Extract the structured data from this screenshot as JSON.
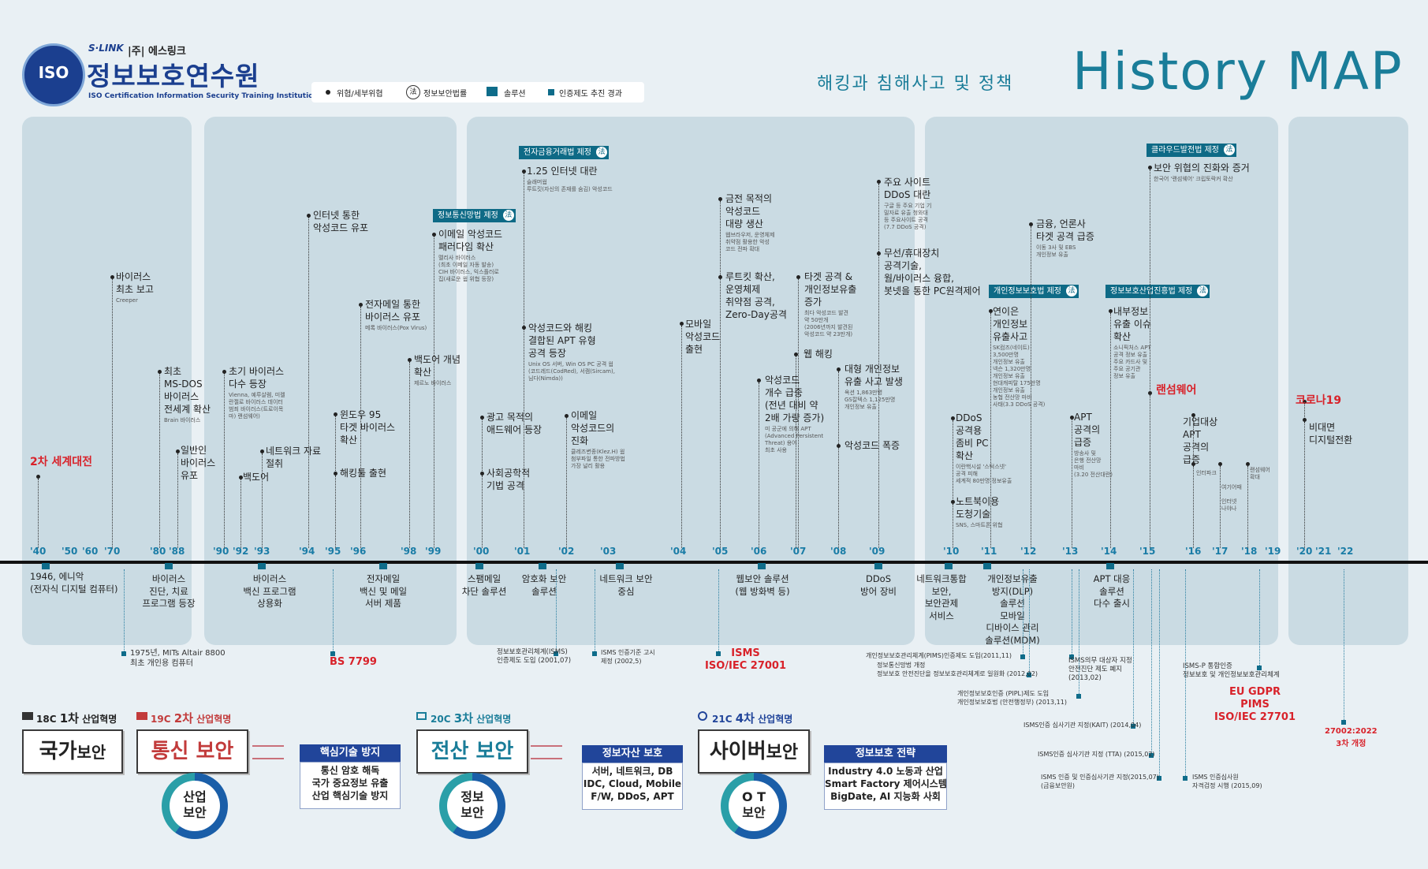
{
  "header": {
    "brand_small": "S·LINK",
    "company": "|주| 에스링크",
    "org_name": "정보보호연수원",
    "org_sub": "ISO Certification Information Security Training Institution",
    "logo_text": "ISO",
    "subtitle": "해킹과 침해사고 및 정책",
    "title": "History MAP"
  },
  "legend": {
    "threat": "위협/세부위협",
    "law": "정보보안법률",
    "law_icon": "法",
    "solution": "솔루션",
    "cert": "인증제도 추진 경과"
  },
  "years": [
    "'40",
    "'50",
    "'60",
    "'70",
    "'80",
    "'88",
    "'90",
    "'92",
    "'93",
    "'94",
    "'95",
    "'96",
    "'98",
    "'99",
    "'00",
    "'01",
    "'02",
    "'03",
    "'04",
    "'05",
    "'06",
    "'07",
    "'08",
    "'09",
    "'10",
    "'11",
    "'12",
    "'13",
    "'14",
    "'15",
    "'16",
    "'17",
    "'18",
    "'19",
    "'20",
    "'21",
    "'22"
  ],
  "events": [
    {
      "title": "2차 세계대전",
      "red": true
    },
    {
      "title": "바이러스\n최초 보고",
      "sub": "Creeper"
    },
    {
      "title": "최초\nMS-DOS\n바이러스\n전세계 확산",
      "sub": "Brain 바이러스"
    },
    {
      "title": "일반인\n바이러스\n유포"
    },
    {
      "title": "초기 바이러스\n다수 등장",
      "sub": "Vienna, 예루살렘, 미켈\n란젤로 바이러스 데이터\n범죄 바이러스(트로이목\n마) 랜섬웨어)"
    },
    {
      "title": "백도어"
    },
    {
      "title": "네트워크 자료\n절취"
    },
    {
      "title": "인터넷 통한\n악성코드 유포"
    },
    {
      "title": "윈도우 95\n타겟 바이러스\n확산"
    },
    {
      "title": "해킹툴 출현"
    },
    {
      "title": "전자메일 통한\n바이러스 유포",
      "sub": "메록 바이러스(Pox Virus)"
    },
    {
      "title": "백도어 개념\n확산",
      "sub": "제르노 바이러스"
    },
    {
      "title": "이메일 악성코드\n패러다임 확산",
      "sub": "멜리사 바이러스\n(최초 이메일 자동 발송)\nCIH 바이러스, 익스플러로\n집(새로운 웜 위협 등장)"
    },
    {
      "title": "광고 목적의\n애드웨어 등장"
    },
    {
      "title": "사회공학적\n기법 공격"
    },
    {
      "title": "1.25 인터넷 대란",
      "sub": "슬래머웜\n루트킷(자신의 존재를 숨김) 악성코드"
    },
    {
      "title": "악성코드와 해킹\n결합된 APT 유형\n공격 등장",
      "sub": "Unix OS 서버, Win OS PC 공격 웜\n(코드레드(CodRed), 서캠(Sircam),\n님다(Nimda))"
    },
    {
      "title": "이메일\n악성코드의\n진화",
      "sub": "클레즈변종(Klez.H) 웜\n첨부파일 통한 전파방법\n가장 널리 활용"
    },
    {
      "title": "모바일\n악성코드\n출현"
    },
    {
      "title": "금전 목적의\n악성코드\n대량 생산",
      "sub": "웹브라우저, 운영체제\n취약점 활용한 악성\n코드 전파 확대"
    },
    {
      "title": "루트킷 확산,\n운영체제\n취약점 공격,\nZero-Day공격"
    },
    {
      "title": "악성코드\n개수 급증\n(전년 대비 약\n2배 가량 증가)",
      "sub": "미 공군에 의해 APT\n(Advanced Persistent\nThreat) 용어\n최초 사용"
    },
    {
      "title": "타겟 공격 &\n개인정보유출\n증가",
      "sub": "최다 악성코드 발견\n약 50만개\n(2006년까지 발견된\n악성코드 약 23만개)"
    },
    {
      "title": "웹 해킹"
    },
    {
      "title": "대형 개인정보\n유출 사고 발생",
      "sub": "옥션 1,863만명\nGS칼텍스 1,125만명\n개인정보 유출"
    },
    {
      "title": "악성코드 폭증"
    },
    {
      "title": "주요 사이트\nDDoS 대란",
      "sub": "구글 등 주요 기업 기\n밀자료 유출 청와대\n등 주요사이트 공격\n(7.7 DDoS 공격)"
    },
    {
      "title": "무선/휴대장치\n공격기술,\n웜/바이러스 융합,\n봇넷을 통한 PC원격제어"
    },
    {
      "title": "DDoS\n공격용\n좀비 PC\n확산",
      "sub": "이란핵시설 '스턱스넷'\n공격 피해\n세계적 80만명 정보유출"
    },
    {
      "title": "노트북이용\n도청기술",
      "sub": "SNS, 스마트폰 위협"
    },
    {
      "title": "연이은\n개인정보\n유출사고",
      "sub": "SK컴즈(네이트)\n3,500만명\n개인정보 유출\n넥슨 1,320만명\n개인정보 유출\n현대캐피탈 175만명\n개인정보 유출\n농협 전산망 마비\n사태(3.3 DDoS 공격)"
    },
    {
      "title": "금융, 언론사\n타겟 공격 급증",
      "sub": "이동 3사 및 EBS\n개인정보 유출"
    },
    {
      "title": "APT\n공격의\n급증",
      "sub": "방송사 및\n은행 전산망\n마비\n(3.20 전산대란)"
    },
    {
      "title": "내부정보\n유출 이슈\n확산",
      "sub": "소니픽처스 APT\n공격 정보 유출\n주요 카드사 및\n주요 공기관\n정보 유출"
    },
    {
      "title": "랜섬웨어",
      "red": true
    },
    {
      "title": "보안 위협의 진화와 증거",
      "sub": "한국어 '랜섬웨어' 크립토락커 확산"
    },
    {
      "title": "기업대상\nAPT\n공격의\n급증"
    },
    {
      "sub": "인터파크"
    },
    {
      "sub": "여기어때\n\n인터넷\n나야나"
    },
    {
      "sub": "랜섬웨어\n확대"
    },
    {
      "title": "코로나19",
      "red": true
    },
    {
      "title": "비대면\n디지털전환"
    }
  ],
  "laws": [
    {
      "label": "정보통신망법 제정"
    },
    {
      "label": "전자금융거래법 제정"
    },
    {
      "label": "개인정보보호법 제정"
    },
    {
      "label": "정보보호산업진흥법 제정"
    },
    {
      "label": "클라우드발전법 제정"
    }
  ],
  "solutions": [
    "1946, 에니악\n(전자식 디지털 컴퓨터)",
    "바이러스\n진단, 치료\n프로그램 등장",
    "바이러스\n백신 프로그램\n상용화",
    "전자메일\n백신 및 메일\n서버 제품",
    "스팸메일\n차단 솔루션",
    "암호화 보안\n솔루션",
    "네트워크 보안\n중심",
    "웹보안 솔루션\n(웹 방화벽 등)",
    "DDoS\n방어 장비",
    "네트워크통합\n보안,\n보안관제\n서비스",
    "개인정보유출\n방지(DLP)\n솔루션\n모바일\n디바이스 관리\n솔루션(MDM)",
    "APT 대응\n솔루션\n다수 출시"
  ],
  "certs": [
    {
      "text": "1975년, MITs Altair 8800\n최초 개인용 컴퓨터"
    },
    {
      "text": "BS 7799",
      "red": true
    },
    {
      "text": "정보보호관리체계(ISMS)\n인증제도 도입 (2001,07)"
    },
    {
      "text": "ISMS 인증기준 고시\n제정 (2002,5)"
    },
    {
      "text": "ISMS\nISO/IEC 27001",
      "red": true
    },
    {
      "text": "개인정보보호관리체계(PIMS)인증제도 도입(2011,11)"
    },
    {
      "text": "정보통신망법 개정\n정보보호 안전진단을 정보보호관리체계로 일원화 (2012,02)"
    },
    {
      "text": "ISMS의무 대상자 지정\n안전진단 제도 폐지\n(2013,02)"
    },
    {
      "text": "개인정보보호인증 (PIPL)제도 도입\n개인정보보호법 (안전행정부) (2013,11)"
    },
    {
      "text": "ISMS인증 심사기관 지정(KAIT) (2014,04)"
    },
    {
      "text": "ISMS인증 심사기관 지정 (TTA) (2015,02)"
    },
    {
      "text": "ISMS 인증 및 인증심사기관 지정(2015,07)\n(금융보안원)"
    },
    {
      "text": "ISMS 인증심사원\n자격검정 시행 (2015,09)"
    },
    {
      "text": "ISMS-P 통합인증\n정보보호 및 개인정보보호관리체계"
    },
    {
      "text": "EU GDPR\nPIMS\nISO/IEC 27701",
      "red": true
    },
    {
      "text": "27002:2022\n3차 개정",
      "red": true
    }
  ],
  "revolutions": [
    {
      "era": "18C",
      "label": "1차",
      "suffix": "산업혁명",
      "box": "국가",
      "box2": "보안"
    },
    {
      "era": "19C",
      "label": "2차",
      "suffix": "산업혁명",
      "box": "통신 보안",
      "ring": "산업\n보안"
    },
    {
      "era": "20C",
      "label": "3차",
      "suffix": "산업혁명",
      "box": "전산 보안",
      "ring": "정보\n보안"
    },
    {
      "era": "21C",
      "label": "4차",
      "suffix": "산업혁명",
      "box": "사이버",
      "box2": "보안",
      "ring": "O T\n보안"
    }
  ],
  "info_boxes": [
    {
      "title": "핵심기술 방지",
      "body": "통신 암호 해독\n국가 중요정보 유출\n산업 핵심기술 방지"
    },
    {
      "title": "정보자산 보호",
      "body": "서버, 네트워크, DB\nIDC, Cloud, Mobile\nF/W, DDoS, APT"
    },
    {
      "title": "정보보호 전략",
      "body": "Industry 4.0 노동과 산업\nSmart Factory 제어시스템\nBigDate, AI 지능화 사회"
    }
  ],
  "colors": {
    "teal": "#1a7d99",
    "red": "#d8222a",
    "navy": "#21459a",
    "panel": "#cadbe3"
  }
}
